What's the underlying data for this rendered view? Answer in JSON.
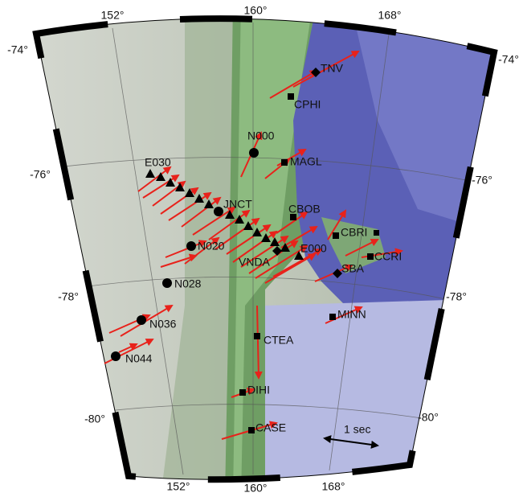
{
  "map": {
    "lon_labels": [
      "152°",
      "160°",
      "168°"
    ],
    "lat_labels": [
      "-74°",
      "-76°",
      "-78°",
      "-80°"
    ],
    "stations": [
      "TNV",
      "CPHI",
      "N000",
      "MAGL",
      "E030",
      "JNCT",
      "CBOB",
      "CBRI",
      "N020",
      "E000",
      "VNDA",
      "CCRI",
      "SBA",
      "N028",
      "MINN",
      "N036",
      "CTEA",
      "N044",
      "DIHI",
      "CASE"
    ],
    "scale_label": "1 sec"
  }
}
